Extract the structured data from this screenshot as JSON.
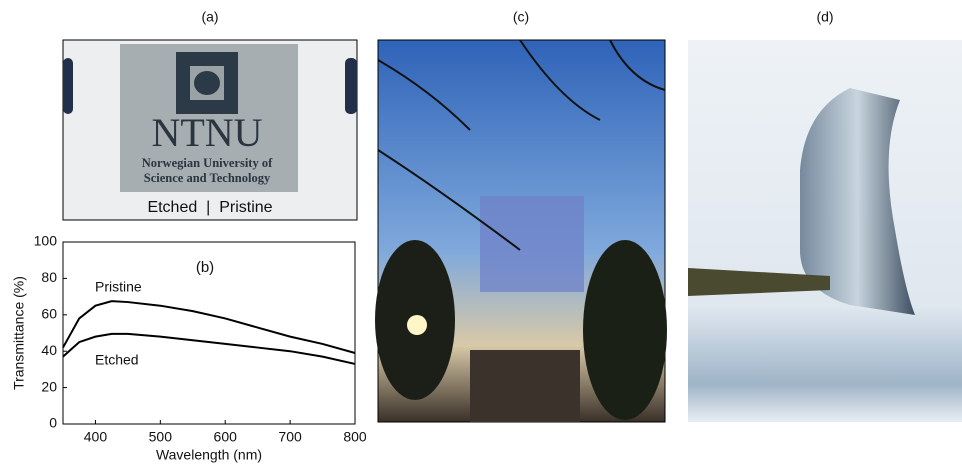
{
  "panels": {
    "a": {
      "label": "(a)",
      "logo_text": "NTNU",
      "logo_subtitle_1": "Norwegian University of",
      "logo_subtitle_2": "Science and Technology",
      "caption": "Etched  |  Pristine"
    },
    "c": {
      "label": "(c)"
    },
    "d": {
      "label": "(d)"
    }
  },
  "chart_data": {
    "type": "line",
    "panel_label": "(b)",
    "xlabel": "Wavelength (nm)",
    "ylabel": "Transmittance (%)",
    "x": [
      350,
      375,
      400,
      425,
      450,
      500,
      550,
      600,
      650,
      700,
      750,
      800
    ],
    "series": [
      {
        "name": "Pristine",
        "color": "#000000",
        "values": [
          42,
          58,
          65,
          67.5,
          67,
          65,
          62,
          58,
          53,
          48,
          44,
          39
        ]
      },
      {
        "name": "Etched",
        "color": "#000000",
        "values": [
          37,
          45,
          48,
          49.5,
          49.5,
          48,
          46,
          44,
          42,
          40,
          37,
          33
        ]
      }
    ],
    "xlim": [
      350,
      800
    ],
    "xticks": [
      400,
      500,
      600,
      700,
      800
    ],
    "ylim": [
      0,
      100
    ],
    "yticks": [
      0,
      20,
      40,
      60,
      80,
      100
    ]
  }
}
